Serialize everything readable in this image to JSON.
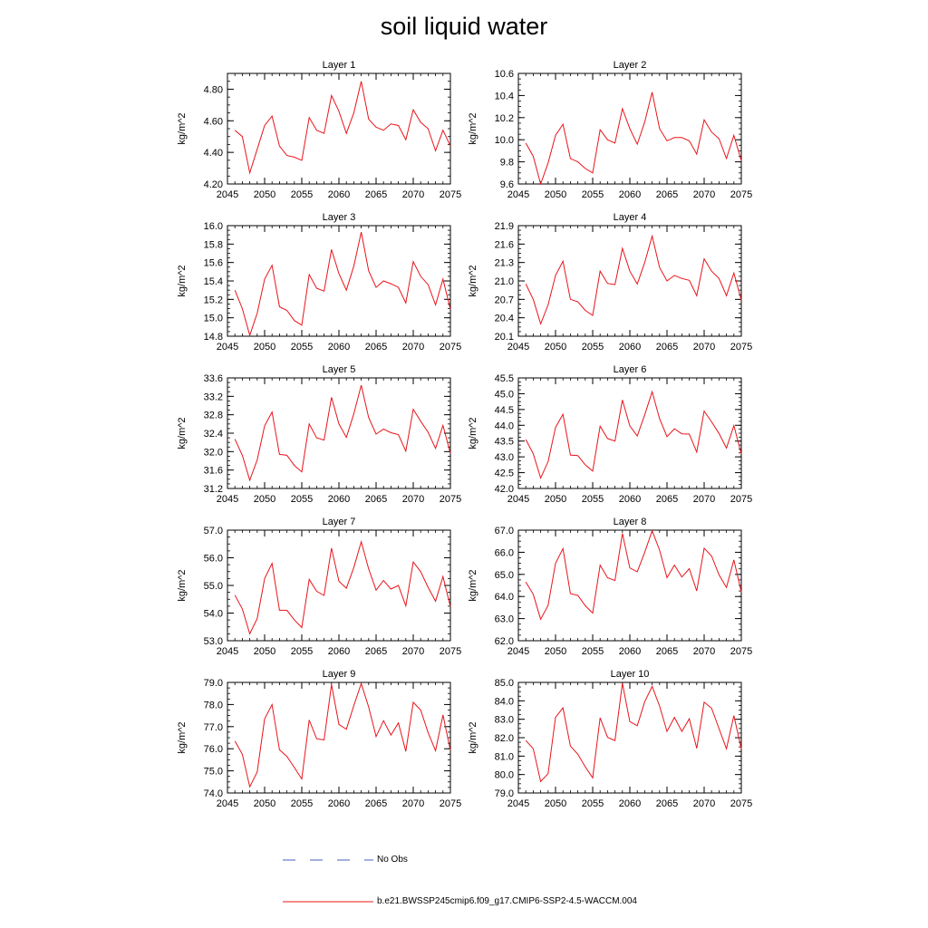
{
  "title": "soil liquid water",
  "legend": {
    "obs_label": "No Obs",
    "obs_color": "#4a5fc1",
    "model_label": "b.e21.BWSSP245cmip6.f09_g17.CMIP6-SSP2-4.5-WACCM.004",
    "model_color": "#e8141a"
  },
  "chart_data": [
    {
      "type": "line",
      "title": "Layer 1",
      "ylabel": "kg/m^2",
      "xlim": [
        2045,
        2075
      ],
      "ylim": [
        4.2,
        4.9
      ],
      "xticks": [
        2045,
        2050,
        2055,
        2060,
        2065,
        2070,
        2075
      ],
      "yticks": [
        "4.20",
        "4.40",
        "4.60",
        "4.80"
      ],
      "x": [
        2046,
        2047,
        2048,
        2049,
        2050,
        2051,
        2052,
        2053,
        2054,
        2055,
        2056,
        2057,
        2058,
        2059,
        2060,
        2061,
        2062,
        2063,
        2064,
        2065,
        2066,
        2067,
        2068,
        2069,
        2070,
        2071,
        2072,
        2073,
        2074,
        2075
      ],
      "series": [
        {
          "values": [
            4.54,
            4.5,
            4.27,
            4.42,
            4.57,
            4.63,
            4.44,
            4.38,
            4.37,
            4.35,
            4.62,
            4.54,
            4.52,
            4.76,
            4.66,
            4.52,
            4.65,
            4.85,
            4.61,
            4.56,
            4.54,
            4.58,
            4.57,
            4.48,
            4.67,
            4.59,
            4.55,
            4.41,
            4.54,
            4.44
          ]
        }
      ]
    },
    {
      "type": "line",
      "title": "Layer 2",
      "ylabel": "kg/m^2",
      "xlim": [
        2045,
        2075
      ],
      "ylim": [
        9.6,
        10.6
      ],
      "xticks": [
        2045,
        2050,
        2055,
        2060,
        2065,
        2070,
        2075
      ],
      "yticks": [
        "9.6",
        "9.8",
        "10.0",
        "10.2",
        "10.4",
        "10.6"
      ],
      "x": [
        2046,
        2047,
        2048,
        2049,
        2050,
        2051,
        2052,
        2053,
        2054,
        2055,
        2056,
        2057,
        2058,
        2059,
        2060,
        2061,
        2062,
        2063,
        2064,
        2065,
        2066,
        2067,
        2068,
        2069,
        2070,
        2071,
        2072,
        2073,
        2074,
        2075
      ],
      "series": [
        {
          "values": [
            9.97,
            9.85,
            9.6,
            9.79,
            10.04,
            10.14,
            9.83,
            9.8,
            9.74,
            9.7,
            10.09,
            10.0,
            9.97,
            10.28,
            10.1,
            9.96,
            10.16,
            10.43,
            10.1,
            9.99,
            10.02,
            10.02,
            9.99,
            9.87,
            10.18,
            10.07,
            10.01,
            9.83,
            10.04,
            9.81
          ]
        }
      ]
    },
    {
      "type": "line",
      "title": "Layer 3",
      "ylabel": "kg/m^2",
      "xlim": [
        2045,
        2075
      ],
      "ylim": [
        14.8,
        16.0
      ],
      "xticks": [
        2045,
        2050,
        2055,
        2060,
        2065,
        2070,
        2075
      ],
      "yticks": [
        "14.8",
        "15.0",
        "15.2",
        "15.4",
        "15.6",
        "15.8",
        "16.0"
      ],
      "x": [
        2046,
        2047,
        2048,
        2049,
        2050,
        2051,
        2052,
        2053,
        2054,
        2055,
        2056,
        2057,
        2058,
        2059,
        2060,
        2061,
        2062,
        2063,
        2064,
        2065,
        2066,
        2067,
        2068,
        2069,
        2070,
        2071,
        2072,
        2073,
        2074,
        2075
      ],
      "series": [
        {
          "values": [
            15.3,
            15.1,
            14.81,
            15.05,
            15.42,
            15.57,
            15.12,
            15.08,
            14.97,
            14.92,
            15.47,
            15.32,
            15.29,
            15.74,
            15.48,
            15.3,
            15.56,
            15.93,
            15.51,
            15.33,
            15.4,
            15.37,
            15.33,
            15.16,
            15.61,
            15.45,
            15.36,
            15.14,
            15.42,
            15.09
          ]
        }
      ]
    },
    {
      "type": "line",
      "title": "Layer 4",
      "ylabel": "kg/m^2",
      "xlim": [
        2045,
        2075
      ],
      "ylim": [
        20.1,
        21.9
      ],
      "xticks": [
        2045,
        2050,
        2055,
        2060,
        2065,
        2070,
        2075
      ],
      "yticks": [
        "20.1",
        "20.4",
        "20.7",
        "21.0",
        "21.3",
        "21.6",
        "21.9"
      ],
      "x": [
        2046,
        2047,
        2048,
        2049,
        2050,
        2051,
        2052,
        2053,
        2054,
        2055,
        2056,
        2057,
        2058,
        2059,
        2060,
        2061,
        2062,
        2063,
        2064,
        2065,
        2066,
        2067,
        2068,
        2069,
        2070,
        2071,
        2072,
        2073,
        2074,
        2075
      ],
      "series": [
        {
          "values": [
            20.95,
            20.7,
            20.3,
            20.61,
            21.09,
            21.32,
            20.7,
            20.66,
            20.52,
            20.44,
            21.16,
            20.96,
            20.94,
            21.53,
            21.16,
            20.95,
            21.3,
            21.73,
            21.22,
            21.0,
            21.09,
            21.04,
            21.01,
            20.76,
            21.36,
            21.16,
            21.04,
            20.76,
            21.13,
            20.69
          ]
        }
      ]
    },
    {
      "type": "line",
      "title": "Layer 5",
      "ylabel": "kg/m^2",
      "xlim": [
        2045,
        2075
      ],
      "ylim": [
        31.2,
        33.6
      ],
      "xticks": [
        2045,
        2050,
        2055,
        2060,
        2065,
        2070,
        2075
      ],
      "yticks": [
        "31.2",
        "31.6",
        "32.0",
        "32.4",
        "32.8",
        "33.2",
        "33.6"
      ],
      "x": [
        2046,
        2047,
        2048,
        2049,
        2050,
        2051,
        2052,
        2053,
        2054,
        2055,
        2056,
        2057,
        2058,
        2059,
        2060,
        2061,
        2062,
        2063,
        2064,
        2065,
        2066,
        2067,
        2068,
        2069,
        2070,
        2071,
        2072,
        2073,
        2074,
        2075
      ],
      "series": [
        {
          "values": [
            32.27,
            31.92,
            31.38,
            31.82,
            32.56,
            32.86,
            31.94,
            31.92,
            31.7,
            31.56,
            32.6,
            32.3,
            32.25,
            33.18,
            32.6,
            32.31,
            32.82,
            33.44,
            32.74,
            32.38,
            32.49,
            32.41,
            32.37,
            32.01,
            32.92,
            32.66,
            32.42,
            32.07,
            32.57,
            31.96
          ]
        }
      ]
    },
    {
      "type": "line",
      "title": "Layer 6",
      "ylabel": "kg/m^2",
      "xlim": [
        2045,
        2075
      ],
      "ylim": [
        42.0,
        45.5
      ],
      "xticks": [
        2045,
        2050,
        2055,
        2060,
        2065,
        2070,
        2075
      ],
      "yticks": [
        "42.0",
        "42.5",
        "43.0",
        "43.5",
        "44.0",
        "44.5",
        "45.0",
        "45.5"
      ],
      "x": [
        2046,
        2047,
        2048,
        2049,
        2050,
        2051,
        2052,
        2053,
        2054,
        2055,
        2056,
        2057,
        2058,
        2059,
        2060,
        2061,
        2062,
        2063,
        2064,
        2065,
        2066,
        2067,
        2068,
        2069,
        2070,
        2071,
        2072,
        2073,
        2074,
        2075
      ],
      "series": [
        {
          "values": [
            43.55,
            43.1,
            42.33,
            42.85,
            43.93,
            44.35,
            43.06,
            43.04,
            42.75,
            42.55,
            43.97,
            43.58,
            43.5,
            44.8,
            43.98,
            43.66,
            44.33,
            45.06,
            44.21,
            43.64,
            43.89,
            43.73,
            43.72,
            43.15,
            44.45,
            44.11,
            43.74,
            43.28,
            43.99,
            43.09
          ]
        }
      ]
    },
    {
      "type": "line",
      "title": "Layer 7",
      "ylabel": "kg/m^2",
      "xlim": [
        2045,
        2075
      ],
      "ylim": [
        53.0,
        57.0
      ],
      "xticks": [
        2045,
        2050,
        2055,
        2060,
        2065,
        2070,
        2075
      ],
      "yticks": [
        "53.0",
        "54.0",
        "55.0",
        "56.0",
        "57.0"
      ],
      "x": [
        2046,
        2047,
        2048,
        2049,
        2050,
        2051,
        2052,
        2053,
        2054,
        2055,
        2056,
        2057,
        2058,
        2059,
        2060,
        2061,
        2062,
        2063,
        2064,
        2065,
        2066,
        2067,
        2068,
        2069,
        2070,
        2071,
        2072,
        2073,
        2074,
        2075
      ],
      "series": [
        {
          "values": [
            54.65,
            54.15,
            53.25,
            53.8,
            55.25,
            55.8,
            54.1,
            54.1,
            53.75,
            53.48,
            55.22,
            54.79,
            54.64,
            56.35,
            55.15,
            54.9,
            55.65,
            56.58,
            55.6,
            54.83,
            55.18,
            54.87,
            55.0,
            54.26,
            55.85,
            55.5,
            54.93,
            54.43,
            55.32,
            54.23
          ]
        }
      ]
    },
    {
      "type": "line",
      "title": "Layer 8",
      "ylabel": "kg/m^2",
      "xlim": [
        2045,
        2075
      ],
      "ylim": [
        62.0,
        67.0
      ],
      "xticks": [
        2045,
        2050,
        2055,
        2060,
        2065,
        2070,
        2075
      ],
      "yticks": [
        "62.0",
        "63.0",
        "64.0",
        "65.0",
        "66.0",
        "67.0"
      ],
      "x": [
        2046,
        2047,
        2048,
        2049,
        2050,
        2051,
        2052,
        2053,
        2054,
        2055,
        2056,
        2057,
        2058,
        2059,
        2060,
        2061,
        2062,
        2063,
        2064,
        2065,
        2066,
        2067,
        2068,
        2069,
        2070,
        2071,
        2072,
        2073,
        2074,
        2075
      ],
      "series": [
        {
          "values": [
            64.65,
            64.1,
            62.97,
            63.6,
            65.5,
            66.17,
            64.13,
            64.05,
            63.58,
            63.25,
            65.42,
            64.85,
            64.72,
            66.85,
            65.29,
            65.12,
            66.0,
            66.97,
            66.1,
            64.85,
            65.42,
            64.88,
            65.26,
            64.25,
            66.18,
            65.83,
            64.98,
            64.41,
            65.65,
            64.2
          ]
        }
      ]
    },
    {
      "type": "line",
      "title": "Layer 9",
      "ylabel": "kg/m^2",
      "xlim": [
        2045,
        2075
      ],
      "ylim": [
        74.0,
        79.0
      ],
      "xticks": [
        2045,
        2050,
        2055,
        2060,
        2065,
        2070,
        2075
      ],
      "yticks": [
        "74.0",
        "75.0",
        "76.0",
        "77.0",
        "78.0",
        "79.0"
      ],
      "x": [
        2046,
        2047,
        2048,
        2049,
        2050,
        2051,
        2052,
        2053,
        2054,
        2055,
        2056,
        2057,
        2058,
        2059,
        2060,
        2061,
        2062,
        2063,
        2064,
        2065,
        2066,
        2067,
        2068,
        2069,
        2070,
        2071,
        2072,
        2073,
        2074,
        2075
      ],
      "series": [
        {
          "values": [
            76.35,
            75.75,
            74.28,
            74.95,
            77.35,
            78.0,
            75.95,
            75.65,
            75.15,
            74.63,
            77.3,
            76.45,
            76.4,
            78.9,
            77.1,
            76.88,
            77.95,
            78.95,
            77.89,
            76.55,
            77.27,
            76.62,
            77.17,
            75.88,
            78.1,
            77.75,
            76.73,
            75.91,
            77.53,
            75.92
          ]
        }
      ]
    },
    {
      "type": "line",
      "title": "Layer 10",
      "ylabel": "kg/m^2",
      "xlim": [
        2045,
        2075
      ],
      "ylim": [
        79.0,
        85.0
      ],
      "xticks": [
        2045,
        2050,
        2055,
        2060,
        2065,
        2070,
        2075
      ],
      "yticks": [
        "79.0",
        "80.0",
        "81.0",
        "82.0",
        "83.0",
        "84.0",
        "85.0"
      ],
      "x": [
        2046,
        2047,
        2048,
        2049,
        2050,
        2051,
        2052,
        2053,
        2054,
        2055,
        2056,
        2057,
        2058,
        2059,
        2060,
        2061,
        2062,
        2063,
        2064,
        2065,
        2066,
        2067,
        2068,
        2069,
        2070,
        2071,
        2072,
        2073,
        2074,
        2075
      ],
      "series": [
        {
          "values": [
            81.85,
            81.4,
            79.62,
            80.05,
            83.1,
            83.62,
            81.55,
            81.1,
            80.42,
            79.82,
            83.08,
            82.02,
            81.85,
            84.95,
            82.87,
            82.65,
            83.95,
            84.78,
            83.72,
            82.34,
            83.1,
            82.34,
            83.03,
            81.42,
            83.93,
            83.6,
            82.49,
            81.4,
            83.2,
            81.39
          ]
        }
      ]
    }
  ]
}
